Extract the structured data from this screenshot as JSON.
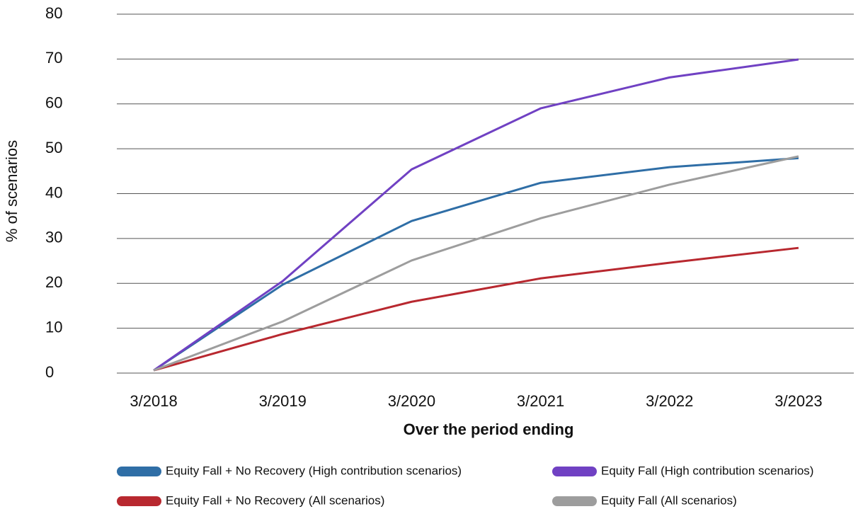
{
  "chart_data": {
    "type": "line",
    "x_label": "Over the period ending",
    "y_label": "% of scenarios",
    "categories": [
      "3/2018",
      "3/2019",
      "3/2020",
      "3/2021",
      "3/2022",
      "3/2023"
    ],
    "series": [
      {
        "name": "Equity Fall + No Recovery (High contribution scenarios)",
        "color": "#2f6ea6",
        "values": [
          0.6,
          19.7,
          33.9,
          42.4,
          45.9,
          47.9
        ]
      },
      {
        "name": "Equity Fall (High contribution scenarios)",
        "color": "#7041c3",
        "values": [
          0.6,
          20.5,
          45.4,
          59,
          65.9,
          69.9
        ]
      },
      {
        "name": "Equity Fall + No Recovery (All scenarios)",
        "color": "#b8282f",
        "values": [
          0.6,
          8.7,
          15.9,
          21.1,
          24.6,
          27.9
        ]
      },
      {
        "name": "Equity Fall (All scenarios)",
        "color": "#9d9d9d",
        "values": [
          0.6,
          11.5,
          25.1,
          34.5,
          42,
          48.3
        ]
      }
    ],
    "ylim": [
      0,
      80
    ],
    "yticks": [
      0,
      10,
      20,
      30,
      40,
      50,
      60,
      70,
      80
    ],
    "grid": true
  }
}
